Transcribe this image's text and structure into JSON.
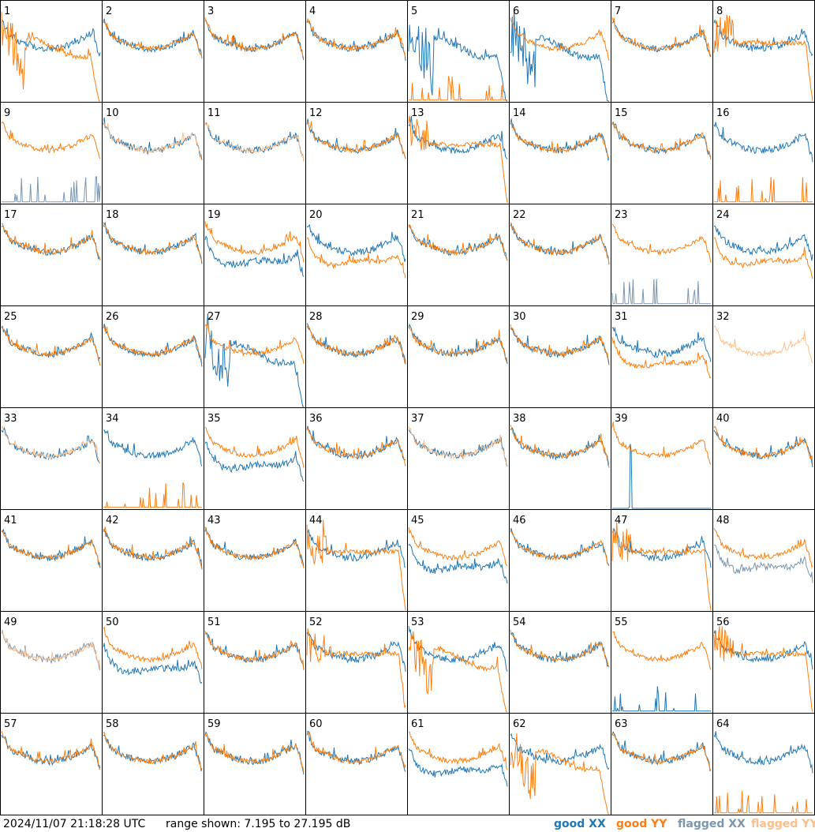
{
  "colors": {
    "good_xx": "#1f77b4",
    "good_yy": "#ff7f0e",
    "flagged_xx": "#7a96b0",
    "flagged_yy": "#ffbf8a",
    "grid": "#000000"
  },
  "footer": {
    "timestamp": "2024/11/07 21:18:28 UTC",
    "range": "range shown: 7.195 to 27.195 dB"
  },
  "legend": {
    "good_xx": "good XX",
    "good_yy": "good YY",
    "flagged_xx": "flagged XX",
    "flagged_yy": "flagged YY"
  },
  "chart_data": {
    "type": "line",
    "layout": "8x8 grid of small multiples",
    "yunit": "dB",
    "ylim": [
      7.195,
      27.195
    ],
    "series_names": [
      "good XX",
      "good YY",
      "flagged XX",
      "flagged YY"
    ],
    "panels": [
      {
        "id": "1",
        "xx": "good",
        "yy": "good",
        "yy_shape": "dip"
      },
      {
        "id": "2",
        "xx": "good",
        "yy": "good"
      },
      {
        "id": "3",
        "xx": "good",
        "yy": "good"
      },
      {
        "id": "4",
        "xx": "good",
        "yy": "good"
      },
      {
        "id": "5",
        "xx": "good",
        "yy": "low",
        "xx_shape": "dip"
      },
      {
        "id": "6",
        "xx": "good",
        "yy": "good",
        "xx_shape": "dip"
      },
      {
        "id": "7",
        "xx": "good",
        "yy": "good"
      },
      {
        "id": "8",
        "xx": "good",
        "yy": "good",
        "yy_shape": "flat"
      },
      {
        "id": "9",
        "xx": "flagged_low",
        "yy": "good"
      },
      {
        "id": "10",
        "xx": "good",
        "yy": "flagged"
      },
      {
        "id": "11",
        "xx": "good",
        "yy": "flagged"
      },
      {
        "id": "12",
        "xx": "good",
        "yy": "good"
      },
      {
        "id": "13",
        "xx": "good",
        "yy": "good",
        "yy_shape": "flat"
      },
      {
        "id": "14",
        "xx": "good",
        "yy": "good"
      },
      {
        "id": "15",
        "xx": "good",
        "yy": "good"
      },
      {
        "id": "16",
        "xx": "good",
        "yy": "low"
      },
      {
        "id": "17",
        "xx": "good",
        "yy": "good"
      },
      {
        "id": "18",
        "xx": "good",
        "yy": "good"
      },
      {
        "id": "19",
        "xx": "good",
        "yy": "good",
        "xx_shape": "lower"
      },
      {
        "id": "20",
        "xx": "good",
        "yy": "good",
        "yy_shape": "lower"
      },
      {
        "id": "21",
        "xx": "good",
        "yy": "good"
      },
      {
        "id": "22",
        "xx": "good",
        "yy": "good"
      },
      {
        "id": "23",
        "xx": "flagged_low",
        "yy": "good"
      },
      {
        "id": "24",
        "xx": "good",
        "yy": "good",
        "yy_shape": "lower"
      },
      {
        "id": "25",
        "xx": "good",
        "yy": "good"
      },
      {
        "id": "26",
        "xx": "good",
        "yy": "good"
      },
      {
        "id": "27",
        "xx": "good",
        "yy": "good",
        "xx_shape": "dip"
      },
      {
        "id": "28",
        "xx": "good",
        "yy": "good"
      },
      {
        "id": "29",
        "xx": "good",
        "yy": "good"
      },
      {
        "id": "30",
        "xx": "good",
        "yy": "good"
      },
      {
        "id": "31",
        "xx": "good",
        "yy": "good",
        "yy_shape": "lower"
      },
      {
        "id": "32",
        "xx": "none",
        "yy": "flagged"
      },
      {
        "id": "33",
        "xx": "good",
        "yy": "flagged"
      },
      {
        "id": "34",
        "xx": "good",
        "yy": "low"
      },
      {
        "id": "35",
        "xx": "good",
        "yy": "good",
        "xx_shape": "lower"
      },
      {
        "id": "36",
        "xx": "good",
        "yy": "good"
      },
      {
        "id": "37",
        "xx": "good",
        "yy": "flagged"
      },
      {
        "id": "38",
        "xx": "good",
        "yy": "good"
      },
      {
        "id": "39",
        "xx": "spike",
        "yy": "good"
      },
      {
        "id": "40",
        "xx": "good",
        "yy": "good"
      },
      {
        "id": "41",
        "xx": "good",
        "yy": "good"
      },
      {
        "id": "42",
        "xx": "good",
        "yy": "good"
      },
      {
        "id": "43",
        "xx": "good",
        "yy": "good"
      },
      {
        "id": "44",
        "xx": "good",
        "yy": "good",
        "yy_shape": "flat"
      },
      {
        "id": "45",
        "xx": "good",
        "yy": "good",
        "xx_shape": "lower"
      },
      {
        "id": "46",
        "xx": "good",
        "yy": "good"
      },
      {
        "id": "47",
        "xx": "good",
        "yy": "good",
        "yy_shape": "flat"
      },
      {
        "id": "48",
        "xx": "flagged",
        "yy": "good",
        "xx_shape": "lower"
      },
      {
        "id": "49",
        "xx": "flagged",
        "yy": "flagged"
      },
      {
        "id": "50",
        "xx": "good",
        "yy": "good",
        "xx_shape": "lower"
      },
      {
        "id": "51",
        "xx": "good",
        "yy": "good"
      },
      {
        "id": "52",
        "xx": "good",
        "yy": "good",
        "yy_shape": "flat"
      },
      {
        "id": "53",
        "xx": "good",
        "yy": "good",
        "yy_shape": "dip"
      },
      {
        "id": "54",
        "xx": "good",
        "yy": "good"
      },
      {
        "id": "55",
        "xx": "low",
        "yy": "good"
      },
      {
        "id": "56",
        "xx": "good",
        "yy": "good",
        "yy_shape": "flat"
      },
      {
        "id": "57",
        "xx": "good",
        "yy": "good"
      },
      {
        "id": "58",
        "xx": "good",
        "yy": "good"
      },
      {
        "id": "59",
        "xx": "good",
        "yy": "good"
      },
      {
        "id": "60",
        "xx": "good",
        "yy": "good"
      },
      {
        "id": "61",
        "xx": "good",
        "yy": "good",
        "xx_shape": "lower"
      },
      {
        "id": "62",
        "xx": "good",
        "yy": "good",
        "yy_shape": "dip"
      },
      {
        "id": "63",
        "xx": "good",
        "yy": "good"
      },
      {
        "id": "64",
        "xx": "good",
        "yy": "low"
      }
    ]
  }
}
